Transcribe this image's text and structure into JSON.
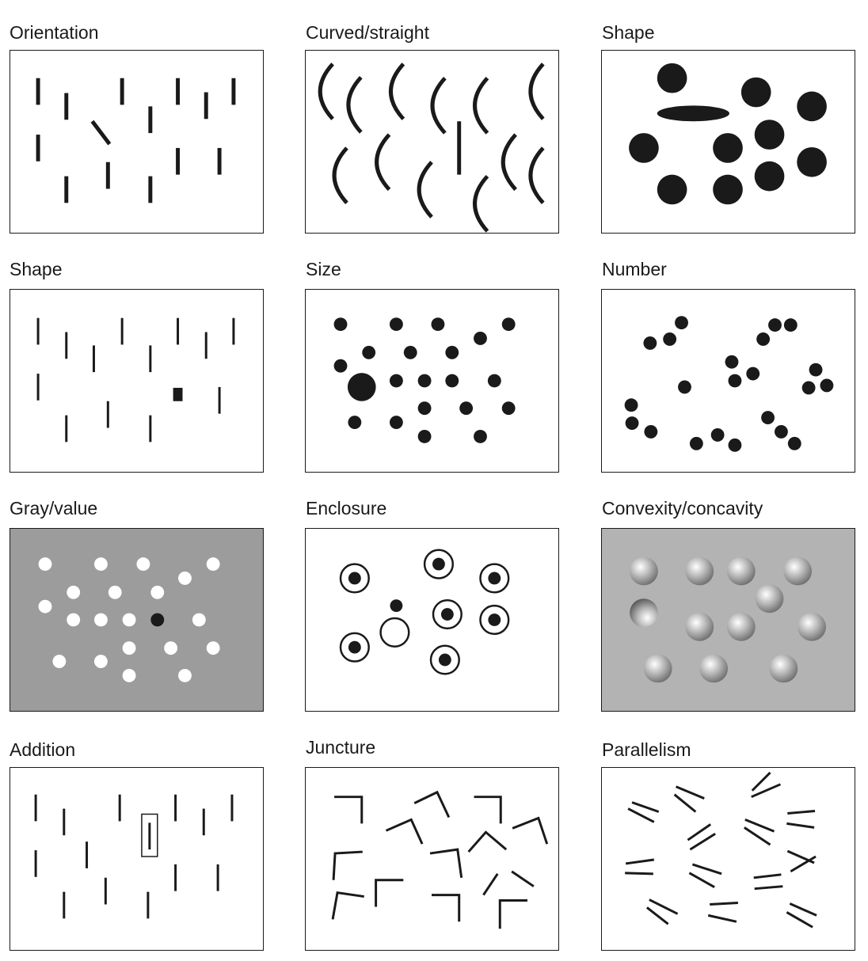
{
  "panels": [
    {
      "id": "orientation",
      "label": "Orientation",
      "background": "#ffffff"
    },
    {
      "id": "curved-straight",
      "label": "Curved/straight",
      "background": "#ffffff"
    },
    {
      "id": "shape-ellipse",
      "label": "Shape",
      "background": "#ffffff"
    },
    {
      "id": "shape-square",
      "label": "Shape",
      "background": "#ffffff"
    },
    {
      "id": "size",
      "label": "Size",
      "background": "#ffffff"
    },
    {
      "id": "number",
      "label": "Number",
      "background": "#ffffff"
    },
    {
      "id": "gray-value",
      "label": "Gray/value",
      "background": "#9c9c9c"
    },
    {
      "id": "enclosure",
      "label": "Enclosure",
      "background": "#ffffff"
    },
    {
      "id": "convexity-concavity",
      "label": "Convexity/concavity",
      "background": "#b3b3b3"
    },
    {
      "id": "addition",
      "label": "Addition",
      "background": "#ffffff"
    },
    {
      "id": "juncture",
      "label": "Juncture",
      "background": "#ffffff"
    },
    {
      "id": "parallelism",
      "label": "Parallelism",
      "background": "#ffffff"
    }
  ],
  "colors": {
    "mark": "#1a1a1a",
    "white_mark": "#ffffff"
  }
}
